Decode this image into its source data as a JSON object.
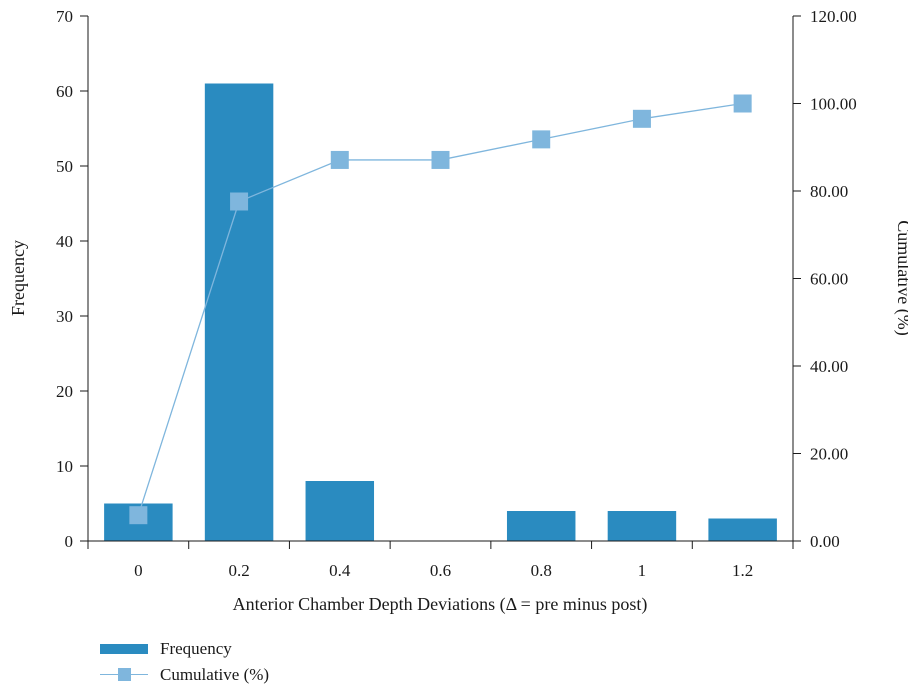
{
  "chart_data": {
    "type": "bar",
    "categories": [
      "0",
      "0.2",
      "0.4",
      "0.6",
      "0.8",
      "1",
      "1.2"
    ],
    "series": [
      {
        "name": "Frequency",
        "type": "bar",
        "axis": "left",
        "color": "#2a8bc0",
        "values": [
          5,
          61,
          8,
          0,
          4,
          4,
          3
        ]
      },
      {
        "name": "Cumulative (%)",
        "type": "line",
        "axis": "right",
        "color": "#7fb6dd",
        "values": [
          5.9,
          77.6,
          87.1,
          87.1,
          91.8,
          96.5,
          100.0
        ]
      }
    ],
    "xlabel": "Anterior Chamber Depth Deviations (Δ = pre minus post)",
    "ylabel": "Frequency",
    "y2label": "Cumulative (%)",
    "ylim": [
      0,
      70
    ],
    "yticks": [
      "0",
      "10",
      "20",
      "30",
      "40",
      "50",
      "60",
      "70"
    ],
    "y2lim": [
      0,
      120
    ],
    "y2ticks": [
      "0.00",
      "20.00",
      "40.00",
      "60.00",
      "80.00",
      "100.00",
      "120.00"
    ],
    "grid": false,
    "legend_position": "bottom-left"
  },
  "legend": {
    "frequency_label": "Frequency",
    "cumulative_label": "Cumulative (%)"
  }
}
